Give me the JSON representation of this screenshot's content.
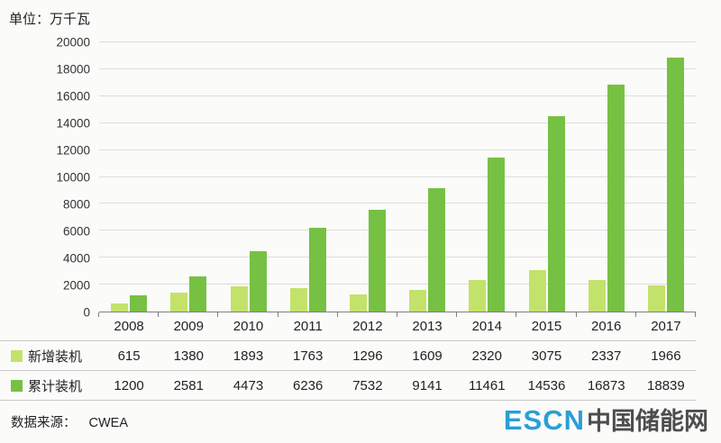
{
  "unit_label": "单位：万千瓦",
  "footer": {
    "source_label": "数据来源：",
    "source_value": "CWEA"
  },
  "logo": {
    "escn": "ESCN",
    "site_name": "中国储能网"
  },
  "colors": {
    "new_installed": "#c3e26a",
    "cumulative": "#76c143",
    "grid": "#dcdcdc",
    "axis": "#7f7f7f",
    "logo_blue": "#2a9fd6",
    "logo_dark": "#4d4d4d"
  },
  "chart_data": {
    "type": "bar",
    "title": "",
    "ylabel": "单位：万千瓦",
    "xlabel": "",
    "categories": [
      "2008",
      "2009",
      "2010",
      "2011",
      "2012",
      "2013",
      "2014",
      "2015",
      "2016",
      "2017"
    ],
    "series": [
      {
        "name": "新增装机",
        "color_key": "new_installed",
        "values": [
          615,
          1380,
          1893,
          1763,
          1296,
          1609,
          2320,
          3075,
          2337,
          1966
        ]
      },
      {
        "name": "累计装机",
        "color_key": "cumulative",
        "values": [
          1200,
          2581,
          4473,
          6236,
          7532,
          9141,
          11461,
          14536,
          16873,
          18839
        ]
      }
    ],
    "ylim": [
      0,
      20000
    ],
    "yticks": [
      0,
      2000,
      4000,
      6000,
      8000,
      10000,
      12000,
      14000,
      16000,
      18000,
      20000
    ],
    "grid": true,
    "legend_position": "table-below",
    "source": "CWEA"
  }
}
